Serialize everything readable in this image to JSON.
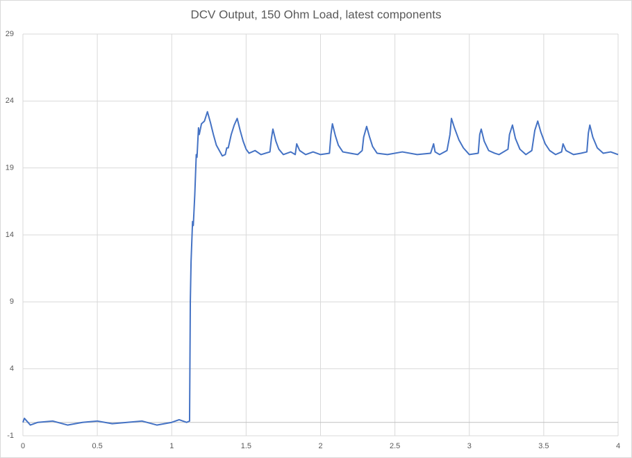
{
  "chart_data": {
    "type": "line",
    "title": "DCV Output, 150 Ohm Load, latest components",
    "x": [
      0,
      0.01,
      0.05,
      0.1,
      0.2,
      0.3,
      0.4,
      0.5,
      0.6,
      0.7,
      0.8,
      0.9,
      1.0,
      1.05,
      1.1,
      1.12,
      1.125,
      1.13,
      1.14,
      1.145,
      1.155,
      1.165,
      1.17,
      1.18,
      1.185,
      1.2,
      1.22,
      1.24,
      1.26,
      1.28,
      1.3,
      1.32,
      1.34,
      1.36,
      1.37,
      1.38,
      1.4,
      1.42,
      1.44,
      1.46,
      1.48,
      1.5,
      1.52,
      1.56,
      1.6,
      1.66,
      1.67,
      1.68,
      1.7,
      1.72,
      1.75,
      1.8,
      1.83,
      1.84,
      1.86,
      1.9,
      1.95,
      2.0,
      2.06,
      2.07,
      2.08,
      2.1,
      2.12,
      2.15,
      2.2,
      2.25,
      2.28,
      2.29,
      2.31,
      2.33,
      2.35,
      2.38,
      2.45,
      2.55,
      2.65,
      2.74,
      2.76,
      2.77,
      2.8,
      2.85,
      2.87,
      2.88,
      2.9,
      2.93,
      2.96,
      3.0,
      3.06,
      3.07,
      3.08,
      3.1,
      3.13,
      3.17,
      3.2,
      3.26,
      3.27,
      3.29,
      3.31,
      3.34,
      3.38,
      3.42,
      3.44,
      3.46,
      3.48,
      3.51,
      3.54,
      3.58,
      3.62,
      3.63,
      3.65,
      3.7,
      3.75,
      3.79,
      3.8,
      3.81,
      3.83,
      3.86,
      3.9,
      3.95,
      4.0
    ],
    "values": [
      0,
      0.3,
      -0.2,
      0,
      0.1,
      -0.2,
      0,
      0.1,
      -0.1,
      0,
      0.1,
      -0.2,
      0,
      0.2,
      0,
      0.1,
      9,
      12,
      15,
      14.7,
      17,
      20,
      19.8,
      22,
      21.5,
      22.3,
      22.5,
      23.2,
      22.4,
      21.5,
      20.7,
      20.3,
      19.9,
      20,
      20.5,
      20.5,
      21.5,
      22.2,
      22.7,
      21.8,
      21,
      20.4,
      20.1,
      20.3,
      20,
      20.2,
      21.2,
      21.9,
      21,
      20.4,
      20,
      20.2,
      20,
      20.8,
      20.3,
      20,
      20.2,
      20,
      20.1,
      21.5,
      22.3,
      21.4,
      20.7,
      20.2,
      20.1,
      20,
      20.3,
      21.3,
      22.1,
      21.3,
      20.6,
      20.1,
      20,
      20.2,
      20,
      20.1,
      20.8,
      20.2,
      20,
      20.3,
      21.5,
      22.7,
      22,
      21.1,
      20.5,
      20,
      20.1,
      21.5,
      21.9,
      21,
      20.3,
      20.1,
      20,
      20.4,
      21.5,
      22.2,
      21.2,
      20.4,
      20,
      20.3,
      21.8,
      22.5,
      21.7,
      20.8,
      20.3,
      20,
      20.2,
      20.8,
      20.3,
      20,
      20.1,
      20.2,
      21.6,
      22.2,
      21.3,
      20.5,
      20.1,
      20.2,
      20
    ],
    "color": "#4472c4",
    "xlim": [
      0,
      4
    ],
    "xticks": [
      0,
      0.5,
      1,
      1.5,
      2,
      2.5,
      3,
      3.5,
      4
    ],
    "ylim": [
      -1,
      29
    ],
    "yticks": [
      -1,
      4,
      9,
      14,
      19,
      24,
      29
    ],
    "grid": true
  }
}
